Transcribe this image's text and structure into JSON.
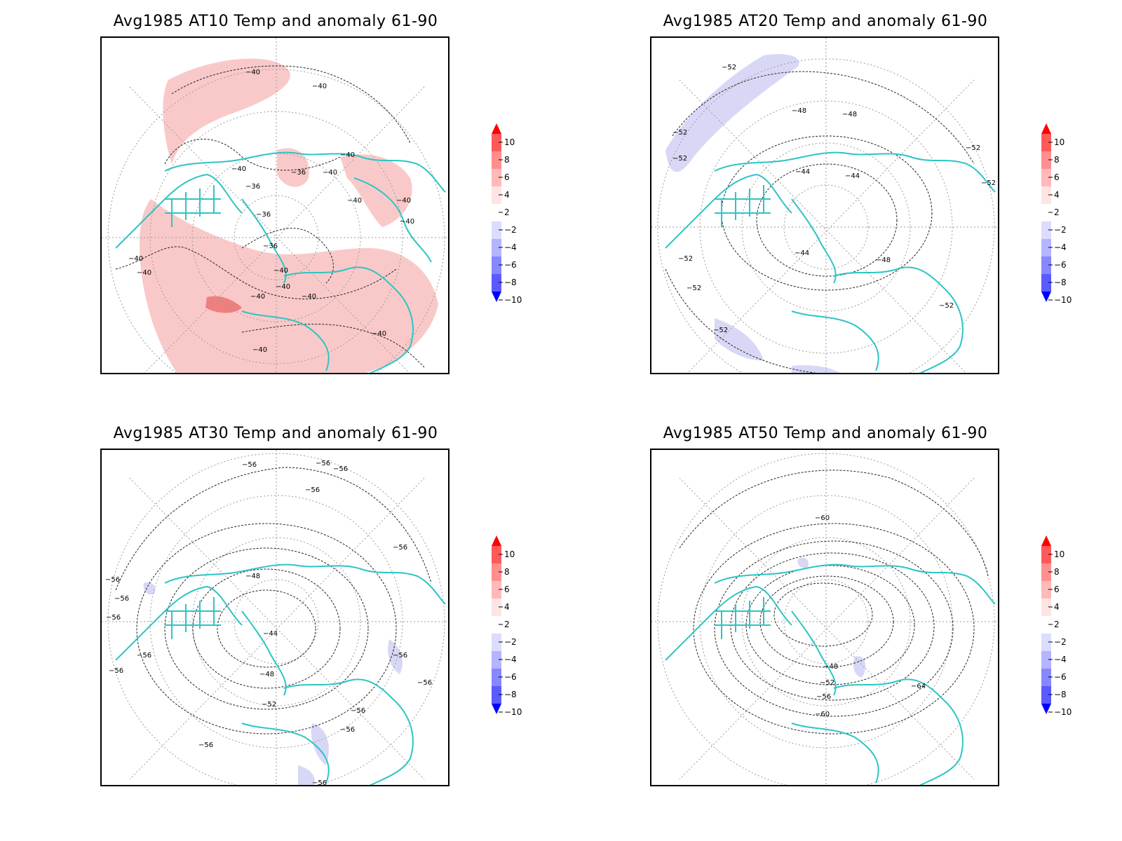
{
  "colors": {
    "coast": "#2ec4c4",
    "contour": "#222222",
    "grid": "#9a9a9a",
    "anomaly_pos": "#f9c9c9",
    "anomaly_pos_strong": "#ef7f7f",
    "anomaly_neg": "#d8d8f6"
  },
  "colorbar": {
    "labels": [
      "10",
      "8",
      "6",
      "4",
      "2",
      "−2",
      "−4",
      "−6",
      "−8",
      "−10"
    ],
    "colors": [
      "#ff1010",
      "#ff5a5a",
      "#ff8f8f",
      "#ffb9b9",
      "#ffe4e4",
      "#ffffff",
      "#dcdcff",
      "#b4b4ff",
      "#8787ff",
      "#5a5aff",
      "#1414ff"
    ],
    "tip_top": "#ff0000",
    "tip_bottom": "#0000ff"
  },
  "panels": [
    {
      "title": "Avg1985 AT10 Temp and anomaly 61-90",
      "contour_labels": [
        "−40",
        "−40",
        "−40",
        "−36",
        "−36",
        "−36",
        "−36",
        "−40",
        "−40",
        "−40",
        "−40",
        "−40",
        "−40",
        "−40",
        "−40",
        "−40",
        "−40",
        "−40",
        "−40",
        "−40"
      ]
    },
    {
      "title": "Avg1985 AT20 Temp and anomaly 61-90",
      "contour_labels": [
        "−52",
        "−48",
        "−48",
        "−52",
        "−52",
        "−44",
        "−44",
        "−44",
        "−52",
        "−52",
        "−52",
        "−48",
        "−52",
        "−52",
        "−52"
      ]
    },
    {
      "title": "Avg1985 AT30 Temp and anomaly 61-90",
      "contour_labels": [
        "−56",
        "−56",
        "−56",
        "−56",
        "−56",
        "−48",
        "−44",
        "−48",
        "−56",
        "−56",
        "−56",
        "−56",
        "−56",
        "−52",
        "−56",
        "−56",
        "−56",
        "−56",
        "−56",
        "−56"
      ]
    },
    {
      "title": "Avg1985 AT50 Temp and anomaly 61-90",
      "contour_labels": [
        "−60",
        "−48",
        "−52",
        "−56",
        "−60",
        "−64"
      ]
    }
  ]
}
